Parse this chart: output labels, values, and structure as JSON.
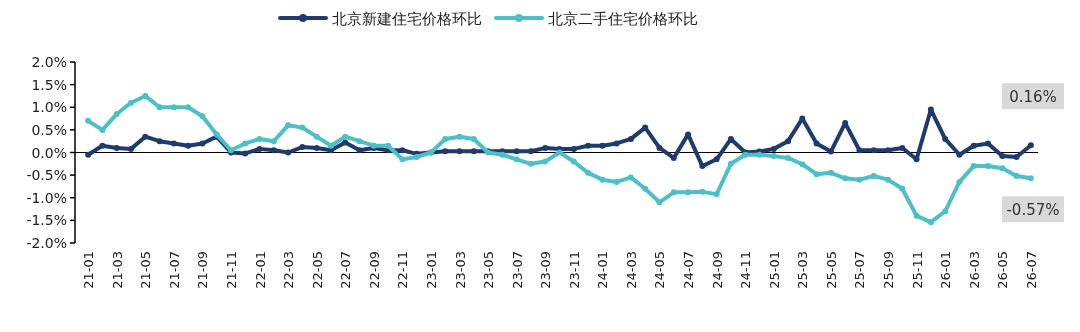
{
  "chart_data": {
    "type": "line",
    "categories": [
      "21-01",
      null,
      "21-03",
      null,
      "21-05",
      null,
      "21-07",
      null,
      "21-09",
      null,
      "21-11",
      null,
      "22-01",
      null,
      "22-03",
      null,
      "22-05",
      null,
      "22-07",
      null,
      "22-09",
      null,
      "22-11",
      null,
      "23-01",
      null,
      "23-03",
      null,
      "23-05",
      null,
      "23-07",
      null,
      "23-09",
      null,
      "23-11",
      null,
      "24-01",
      null,
      "24-03",
      null,
      "24-05",
      null,
      "24-07",
      null,
      "24-09",
      null,
      "24-11",
      null,
      "25-01",
      null,
      "25-03",
      null,
      "25-05",
      null,
      "25-07",
      null,
      "25-09",
      null,
      "25-11",
      null,
      "26-01",
      null,
      "26-03",
      null,
      "26-05",
      null,
      "26-07"
    ],
    "series": [
      {
        "name": "北京新建住宅价格环比",
        "color": "#1f3b6b",
        "values": [
          -0.05,
          0.15,
          0.1,
          0.08,
          0.35,
          0.25,
          0.2,
          0.15,
          0.2,
          0.35,
          0.0,
          -0.02,
          0.08,
          0.05,
          0.0,
          0.12,
          0.1,
          0.05,
          0.22,
          0.05,
          0.1,
          0.05,
          0.05,
          -0.03,
          0.0,
          0.03,
          0.03,
          0.03,
          0.03,
          0.03,
          0.03,
          0.03,
          0.1,
          0.08,
          0.08,
          0.15,
          0.15,
          0.2,
          0.3,
          0.55,
          0.1,
          -0.12,
          0.4,
          -0.3,
          -0.15,
          0.3,
          0.0,
          0.02,
          0.08,
          0.25,
          0.75,
          0.2,
          0.02,
          0.65,
          0.05,
          0.05,
          0.05,
          0.1,
          -0.15,
          0.95,
          0.3,
          -0.05,
          0.15,
          0.2,
          -0.08,
          -0.1,
          0.16
        ],
        "value_labels": [
          null,
          null,
          null,
          null,
          null,
          null,
          null,
          null,
          null,
          null,
          null,
          null,
          null,
          null,
          null,
          null,
          null,
          null,
          null,
          null,
          null,
          null,
          null,
          null,
          null,
          null,
          null,
          null,
          null,
          null,
          null,
          null,
          null,
          null,
          null,
          null,
          null,
          null,
          null,
          null,
          null,
          null,
          null,
          null,
          null,
          null,
          null,
          null,
          null,
          null,
          null,
          null,
          null,
          null,
          null,
          null,
          null,
          null,
          null,
          null,
          null,
          null,
          null,
          null,
          null,
          null,
          "0.16%"
        ]
      },
      {
        "name": "北京二手住宅价格环比",
        "color": "#4dbfc6",
        "values": [
          0.7,
          0.5,
          0.85,
          1.1,
          1.25,
          1.0,
          1.0,
          1.0,
          0.8,
          0.4,
          0.05,
          0.2,
          0.3,
          0.25,
          0.6,
          0.55,
          0.35,
          0.15,
          0.35,
          0.25,
          0.15,
          0.15,
          -0.15,
          -0.1,
          0.0,
          0.3,
          0.35,
          0.3,
          0.0,
          -0.05,
          -0.15,
          -0.25,
          -0.2,
          0.0,
          -0.2,
          -0.45,
          -0.6,
          -0.65,
          -0.55,
          -0.8,
          -1.1,
          -0.88,
          -0.88,
          -0.87,
          -0.92,
          -0.25,
          -0.05,
          -0.05,
          -0.08,
          -0.12,
          -0.26,
          -0.48,
          -0.45,
          -0.57,
          -0.6,
          -0.52,
          -0.6,
          -0.8,
          -1.4,
          -1.54,
          -1.3,
          -0.65,
          -0.3,
          -0.3,
          -0.35,
          -0.52,
          -0.57
        ],
        "value_labels": [
          null,
          null,
          null,
          null,
          null,
          null,
          null,
          null,
          null,
          null,
          null,
          null,
          null,
          null,
          null,
          null,
          null,
          null,
          null,
          null,
          null,
          null,
          null,
          null,
          null,
          null,
          null,
          null,
          null,
          null,
          null,
          null,
          null,
          null,
          null,
          null,
          null,
          null,
          null,
          null,
          null,
          null,
          null,
          null,
          null,
          null,
          null,
          null,
          null,
          null,
          null,
          null,
          null,
          null,
          null,
          null,
          null,
          null,
          null,
          null,
          null,
          null,
          null,
          null,
          null,
          null,
          "-0.57%"
        ]
      }
    ],
    "ylim": [
      -2.0,
      2.0
    ],
    "yticks": [
      {
        "value": 2.0,
        "label": "2.0%"
      },
      {
        "value": 1.5,
        "label": "1.5%"
      },
      {
        "value": 1.0,
        "label": "1.0%"
      },
      {
        "value": 0.5,
        "label": "0.5%"
      },
      {
        "value": 0.0,
        "label": "0.0%"
      },
      {
        "value": -0.5,
        "label": "-0.5%"
      },
      {
        "value": -1.0,
        "label": "-1.0%"
      },
      {
        "value": -1.5,
        "label": "-1.5%"
      },
      {
        "value": -2.0,
        "label": "-2.0%"
      }
    ],
    "legend": "top",
    "marker": "circle",
    "line_style": "solid"
  }
}
